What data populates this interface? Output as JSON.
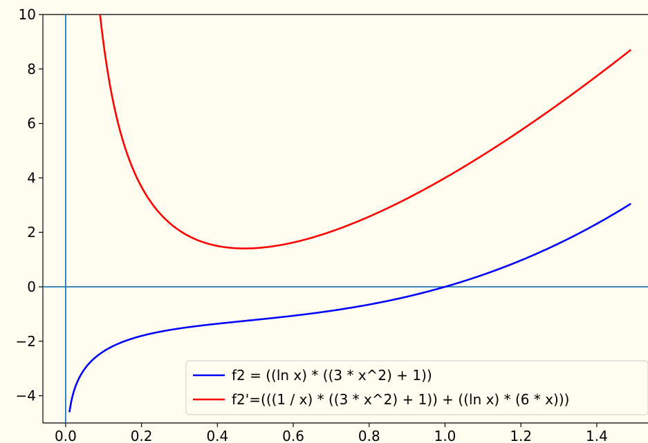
{
  "chart_data": {
    "type": "line",
    "title": "",
    "xlabel": "",
    "ylabel": "",
    "xlim": [
      -0.06,
      1.535
    ],
    "ylim": [
      -5,
      10
    ],
    "grid": false,
    "legend_placement": "lower-right",
    "x_ticks": [
      0.0,
      0.2,
      0.4,
      0.6,
      0.8,
      1.0,
      1.2,
      1.4
    ],
    "x_tick_labels": [
      "0.0",
      "0.2",
      "0.4",
      "0.6",
      "0.8",
      "1.0",
      "1.2",
      "1.4"
    ],
    "y_ticks": [
      -4,
      -2,
      0,
      2,
      4,
      6,
      8,
      10
    ],
    "y_tick_labels": [
      "−4",
      "−2",
      "0",
      "2",
      "4",
      "6",
      "8",
      "10"
    ],
    "reference_lines": {
      "horizontal_y": 0,
      "vertical_x": 0,
      "color": "#1f77b4"
    },
    "series": [
      {
        "name": "f2 = ((ln x) * ((3 * x^2) + 1))",
        "color": "#0000ff",
        "x": [
          0.01,
          0.02,
          0.04,
          0.06,
          0.08,
          0.1,
          0.15,
          0.2,
          0.25,
          0.3,
          0.35,
          0.4,
          0.45,
          0.5,
          0.55,
          0.6,
          0.65,
          0.7,
          0.75,
          0.8,
          0.85,
          0.9,
          0.95,
          1.0,
          1.05,
          1.1,
          1.15,
          1.2,
          1.25,
          1.3,
          1.35,
          1.4,
          1.45,
          1.49
        ],
        "y": [
          -4.606,
          -3.917,
          -3.237,
          -2.844,
          -2.573,
          -2.372,
          -2.266,
          -1.835,
          -1.617,
          -1.529,
          -1.5,
          -1.467,
          -1.394,
          -1.213,
          -1.096,
          -1.037,
          -0.982,
          -0.787,
          -0.659,
          -0.2,
          -0.299,
          -0.149,
          -0.051,
          0.0,
          0.207,
          0.443,
          0.7,
          0.993,
          1.322,
          1.686,
          2.087,
          2.526,
          3.0,
          3.047
        ]
      },
      {
        "name": "f2'=(((1 / x) * ((3 * x^2) + 1)) + ((ln x) * (6 * x)))",
        "color": "#ff0000",
        "x": [
          0.089,
          0.1,
          0.12,
          0.15,
          0.2,
          0.25,
          0.3,
          0.35,
          0.4,
          0.45,
          0.47,
          0.5,
          0.55,
          0.6,
          0.65,
          0.7,
          0.75,
          0.8,
          0.85,
          0.9,
          0.95,
          1.0,
          1.05,
          1.1,
          1.15,
          1.2,
          1.25,
          1.3,
          1.35,
          1.4,
          1.45,
          1.49
        ],
        "y": [
          10.0,
          8.6,
          7.1,
          5.5,
          3.95,
          2.92,
          2.15,
          1.7,
          1.5,
          1.42,
          1.41,
          1.42,
          1.55,
          1.7,
          1.92,
          2.2,
          2.55,
          2.95,
          3.35,
          3.75,
          4.15,
          4.6,
          5.05,
          5.45,
          5.9,
          6.35,
          6.8,
          7.2,
          7.65,
          8.05,
          8.4,
          8.7
        ]
      }
    ]
  }
}
